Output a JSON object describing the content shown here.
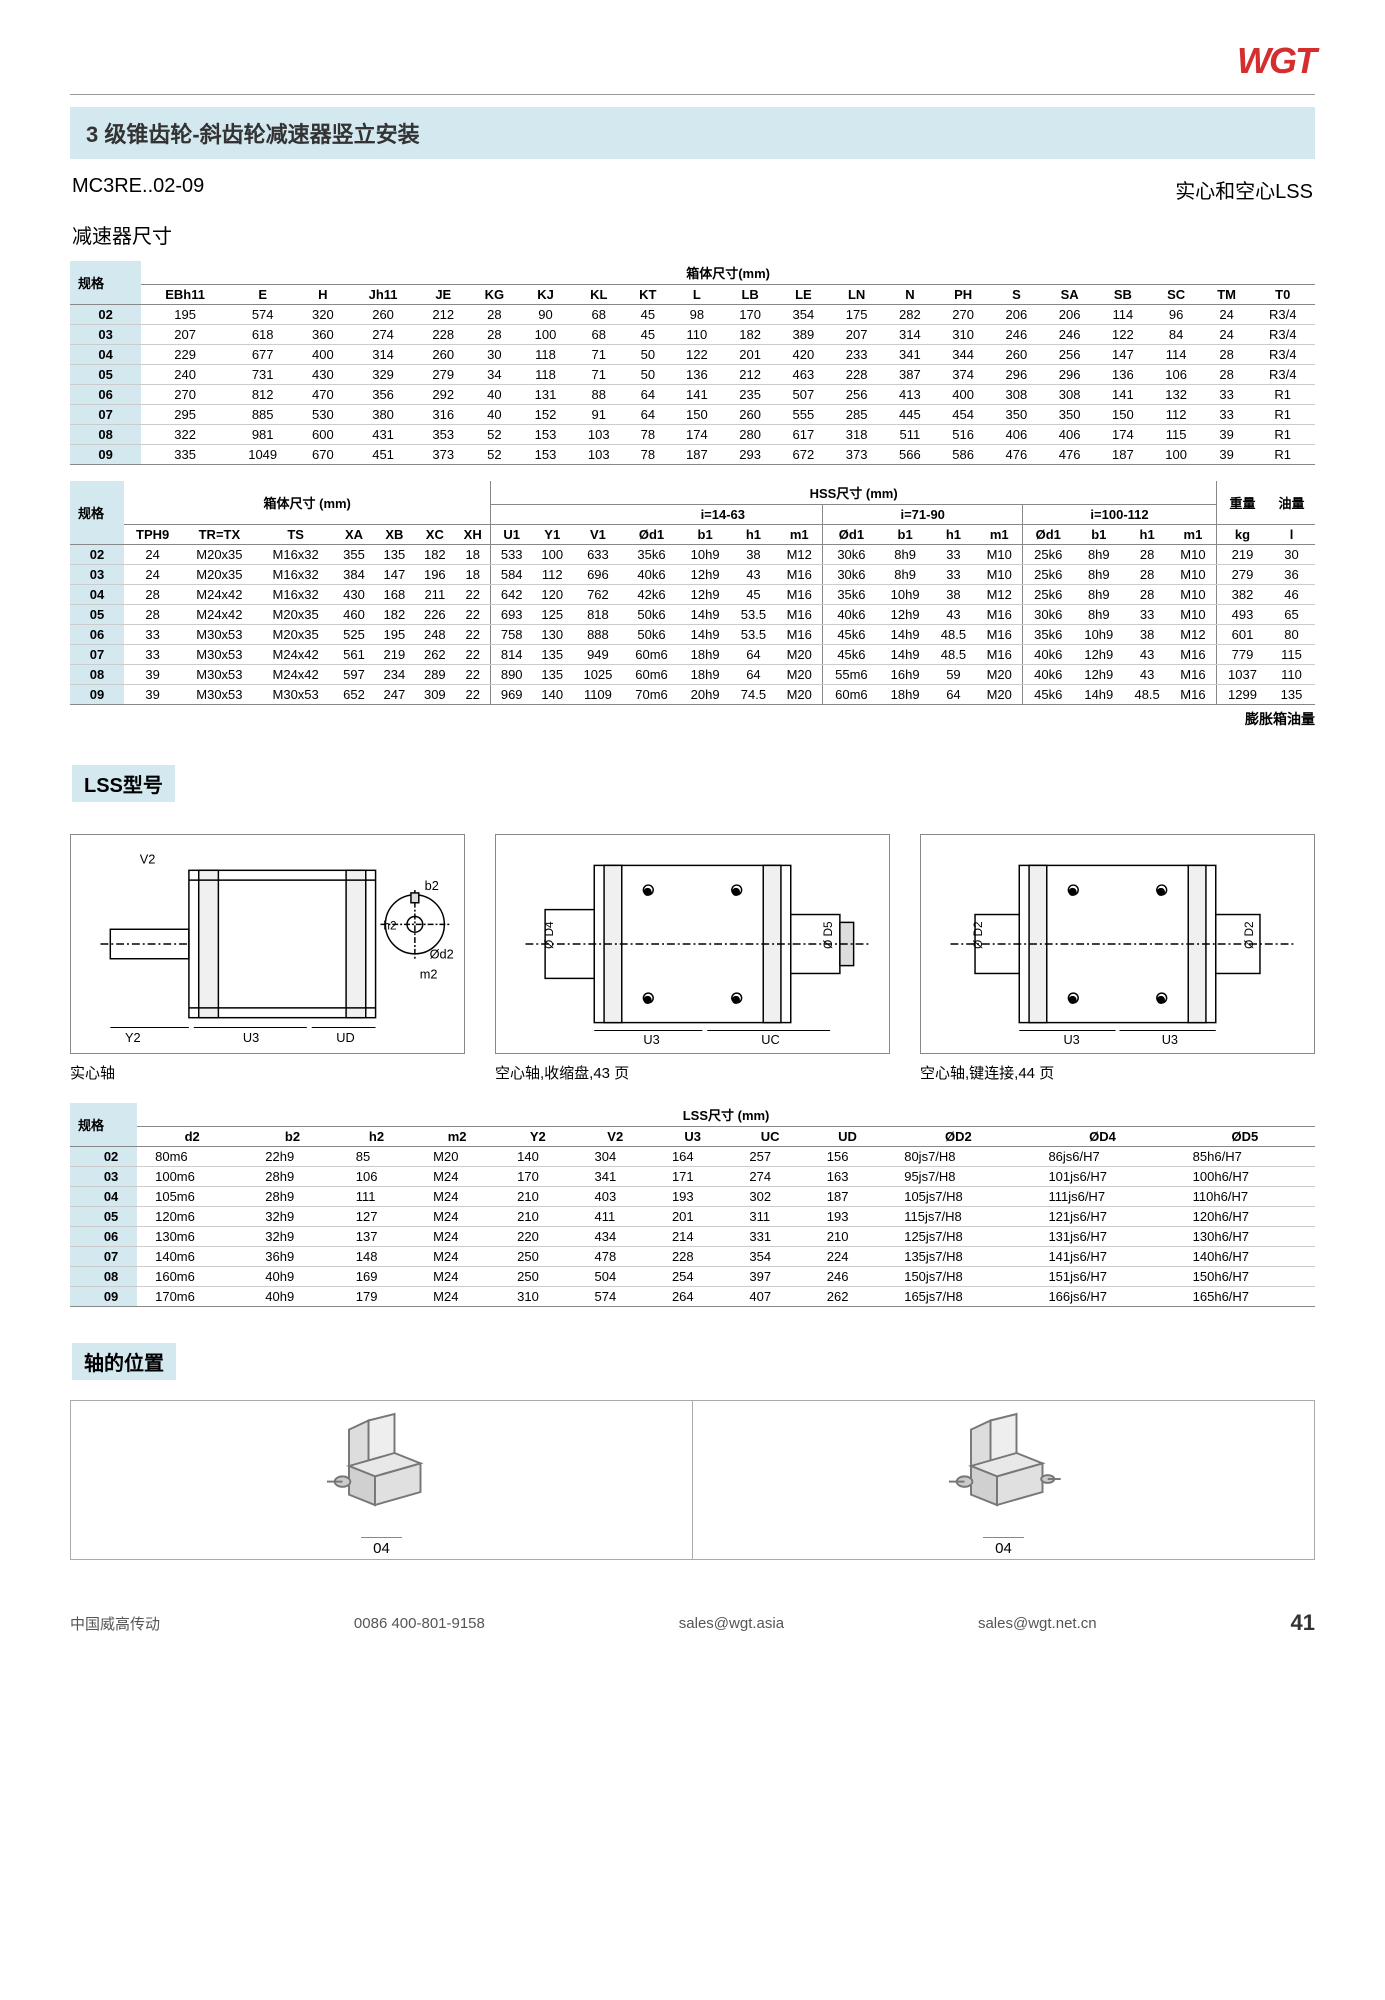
{
  "logo_text": "WGT",
  "title": "3 级锥齿轮-斜齿轮减速器竖立安装",
  "model": "MC3RE..02-09",
  "lss_type": "实心和空心LSS",
  "sub1": "减速器尺寸",
  "table1": {
    "header_title": "箱体尺寸(mm)",
    "spec_label": "规格",
    "cols": [
      "EBh11",
      "E",
      "H",
      "Jh11",
      "JE",
      "KG",
      "KJ",
      "KL",
      "KT",
      "L",
      "LB",
      "LE",
      "LN",
      "N",
      "PH",
      "S",
      "SA",
      "SB",
      "SC",
      "TM",
      "T0"
    ],
    "rows": [
      [
        "02",
        "195",
        "574",
        "320",
        "260",
        "212",
        "28",
        "90",
        "68",
        "45",
        "98",
        "170",
        "354",
        "175",
        "282",
        "270",
        "206",
        "206",
        "114",
        "96",
        "24",
        "R3/4"
      ],
      [
        "03",
        "207",
        "618",
        "360",
        "274",
        "228",
        "28",
        "100",
        "68",
        "45",
        "110",
        "182",
        "389",
        "207",
        "314",
        "310",
        "246",
        "246",
        "122",
        "84",
        "24",
        "R3/4"
      ],
      [
        "04",
        "229",
        "677",
        "400",
        "314",
        "260",
        "30",
        "118",
        "71",
        "50",
        "122",
        "201",
        "420",
        "233",
        "341",
        "344",
        "260",
        "256",
        "147",
        "114",
        "28",
        "R3/4"
      ],
      [
        "05",
        "240",
        "731",
        "430",
        "329",
        "279",
        "34",
        "118",
        "71",
        "50",
        "136",
        "212",
        "463",
        "228",
        "387",
        "374",
        "296",
        "296",
        "136",
        "106",
        "28",
        "R3/4"
      ],
      [
        "06",
        "270",
        "812",
        "470",
        "356",
        "292",
        "40",
        "131",
        "88",
        "64",
        "141",
        "235",
        "507",
        "256",
        "413",
        "400",
        "308",
        "308",
        "141",
        "132",
        "33",
        "R1"
      ],
      [
        "07",
        "295",
        "885",
        "530",
        "380",
        "316",
        "40",
        "152",
        "91",
        "64",
        "150",
        "260",
        "555",
        "285",
        "445",
        "454",
        "350",
        "350",
        "150",
        "112",
        "33",
        "R1"
      ],
      [
        "08",
        "322",
        "981",
        "600",
        "431",
        "353",
        "52",
        "153",
        "103",
        "78",
        "174",
        "280",
        "617",
        "318",
        "511",
        "516",
        "406",
        "406",
        "174",
        "115",
        "39",
        "R1"
      ],
      [
        "09",
        "335",
        "1049",
        "670",
        "451",
        "373",
        "52",
        "153",
        "103",
        "78",
        "187",
        "293",
        "672",
        "373",
        "566",
        "586",
        "476",
        "476",
        "187",
        "100",
        "39",
        "R1"
      ]
    ]
  },
  "table2": {
    "h1": "箱体尺寸 (mm)",
    "h2": "HSS尺寸 (mm)",
    "h3": "重量",
    "h4": "油量",
    "sub_i1": "i=14-63",
    "sub_i2": "i=71-90",
    "sub_i3": "i=100-112",
    "spec_label": "规格",
    "cols_a": [
      "TPH9",
      "TR=TX",
      "TS",
      "XA",
      "XB",
      "XC",
      "XH"
    ],
    "cols_b": [
      "U1",
      "Y1",
      "V1"
    ],
    "cols_c": [
      "Ød1",
      "b1",
      "h1",
      "m1"
    ],
    "kg": "kg",
    "l": "l",
    "rows": [
      [
        "02",
        "24",
        "M20x35",
        "M16x32",
        "355",
        "135",
        "182",
        "18",
        "533",
        "100",
        "633",
        "35k6",
        "10h9",
        "38",
        "M12",
        "30k6",
        "8h9",
        "33",
        "M10",
        "25k6",
        "8h9",
        "28",
        "M10",
        "219",
        "30"
      ],
      [
        "03",
        "24",
        "M20x35",
        "M16x32",
        "384",
        "147",
        "196",
        "18",
        "584",
        "112",
        "696",
        "40k6",
        "12h9",
        "43",
        "M16",
        "30k6",
        "8h9",
        "33",
        "M10",
        "25k6",
        "8h9",
        "28",
        "M10",
        "279",
        "36"
      ],
      [
        "04",
        "28",
        "M24x42",
        "M16x32",
        "430",
        "168",
        "211",
        "22",
        "642",
        "120",
        "762",
        "42k6",
        "12h9",
        "45",
        "M16",
        "35k6",
        "10h9",
        "38",
        "M12",
        "25k6",
        "8h9",
        "28",
        "M10",
        "382",
        "46"
      ],
      [
        "05",
        "28",
        "M24x42",
        "M20x35",
        "460",
        "182",
        "226",
        "22",
        "693",
        "125",
        "818",
        "50k6",
        "14h9",
        "53.5",
        "M16",
        "40k6",
        "12h9",
        "43",
        "M16",
        "30k6",
        "8h9",
        "33",
        "M10",
        "493",
        "65"
      ],
      [
        "06",
        "33",
        "M30x53",
        "M20x35",
        "525",
        "195",
        "248",
        "22",
        "758",
        "130",
        "888",
        "50k6",
        "14h9",
        "53.5",
        "M16",
        "45k6",
        "14h9",
        "48.5",
        "M16",
        "35k6",
        "10h9",
        "38",
        "M12",
        "601",
        "80"
      ],
      [
        "07",
        "33",
        "M30x53",
        "M24x42",
        "561",
        "219",
        "262",
        "22",
        "814",
        "135",
        "949",
        "60m6",
        "18h9",
        "64",
        "M20",
        "45k6",
        "14h9",
        "48.5",
        "M16",
        "40k6",
        "12h9",
        "43",
        "M16",
        "779",
        "115"
      ],
      [
        "08",
        "39",
        "M30x53",
        "M24x42",
        "597",
        "234",
        "289",
        "22",
        "890",
        "135",
        "1025",
        "60m6",
        "18h9",
        "64",
        "M20",
        "55m6",
        "16h9",
        "59",
        "M20",
        "40k6",
        "12h9",
        "43",
        "M16",
        "1037",
        "110"
      ],
      [
        "09",
        "39",
        "M30x53",
        "M30x53",
        "652",
        "247",
        "309",
        "22",
        "969",
        "140",
        "1109",
        "70m6",
        "20h9",
        "74.5",
        "M20",
        "60m6",
        "18h9",
        "64",
        "M20",
        "45k6",
        "14h9",
        "48.5",
        "M16",
        "1299",
        "135"
      ]
    ],
    "note": "膨胀箱油量"
  },
  "sect_lss": "LSS型号",
  "diag1_cap": "实心轴",
  "diag2_cap": "空心轴,收缩盘,43 页",
  "diag3_cap": "空心轴,键连接,44 页",
  "diag1_labels": {
    "V2": "V2",
    "b2": "b2",
    "h2": "h2",
    "d2": "Ød2",
    "m2": "m2",
    "Y2": "Y2",
    "U3": "U3",
    "UD": "UD"
  },
  "diag2_labels": {
    "D4": "Ø D4",
    "D5": "Ø D5",
    "U3": "U3",
    "UC": "UC"
  },
  "diag3_labels": {
    "D2": "Ø D2",
    "U3": "U3"
  },
  "table3": {
    "title": "LSS尺寸 (mm)",
    "spec_label": "规格",
    "cols": [
      "d2",
      "b2",
      "h2",
      "m2",
      "Y2",
      "V2",
      "U3",
      "UC",
      "UD",
      "ØD2",
      "ØD4",
      "ØD5"
    ],
    "rows": [
      [
        "02",
        "80m6",
        "22h9",
        "85",
        "M20",
        "140",
        "304",
        "164",
        "257",
        "156",
        "80js7/H8",
        "86js6/H7",
        "85h6/H7"
      ],
      [
        "03",
        "100m6",
        "28h9",
        "106",
        "M24",
        "170",
        "341",
        "171",
        "274",
        "163",
        "95js7/H8",
        "101js6/H7",
        "100h6/H7"
      ],
      [
        "04",
        "105m6",
        "28h9",
        "111",
        "M24",
        "210",
        "403",
        "193",
        "302",
        "187",
        "105js7/H8",
        "111js6/H7",
        "110h6/H7"
      ],
      [
        "05",
        "120m6",
        "32h9",
        "127",
        "M24",
        "210",
        "411",
        "201",
        "311",
        "193",
        "115js7/H8",
        "121js6/H7",
        "120h6/H7"
      ],
      [
        "06",
        "130m6",
        "32h9",
        "137",
        "M24",
        "220",
        "434",
        "214",
        "331",
        "210",
        "125js7/H8",
        "131js6/H7",
        "130h6/H7"
      ],
      [
        "07",
        "140m6",
        "36h9",
        "148",
        "M24",
        "250",
        "478",
        "228",
        "354",
        "224",
        "135js7/H8",
        "141js6/H7",
        "140h6/H7"
      ],
      [
        "08",
        "160m6",
        "40h9",
        "169",
        "M24",
        "250",
        "504",
        "254",
        "397",
        "246",
        "150js7/H8",
        "151js6/H7",
        "150h6/H7"
      ],
      [
        "09",
        "170m6",
        "40h9",
        "179",
        "M24",
        "310",
        "574",
        "264",
        "407",
        "262",
        "165js7/H8",
        "166js6/H7",
        "165h6/H7"
      ]
    ]
  },
  "sect_shaft": "轴的位置",
  "shaft_label": "04",
  "footer": {
    "company": "中国威高传动",
    "phone": "0086 400-801-9158",
    "email1": "sales@wgt.asia",
    "email2": "sales@wgt.net.cn",
    "page": "41"
  }
}
